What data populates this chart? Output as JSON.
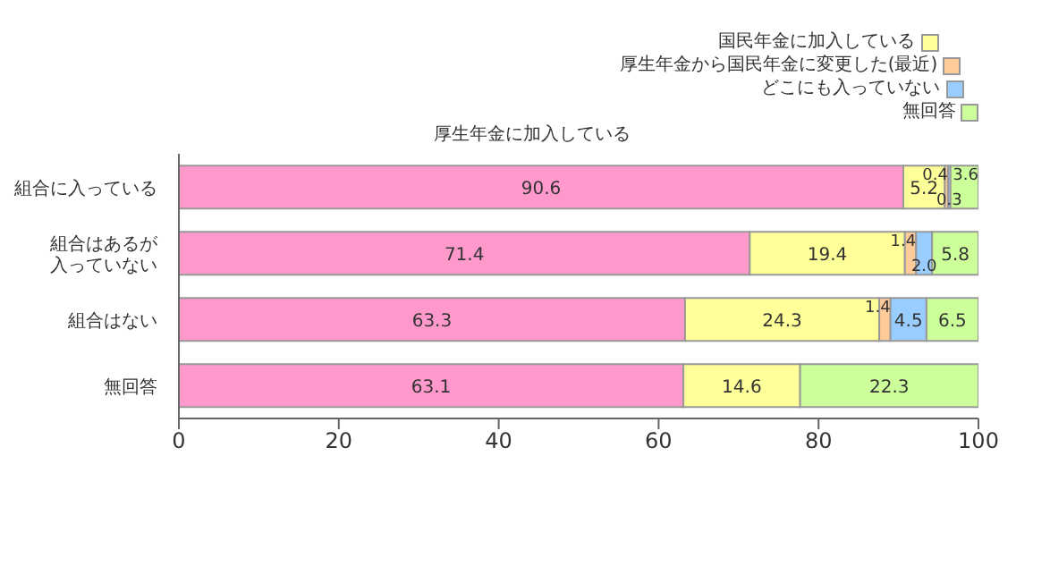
{
  "chart_data": {
    "type": "bar",
    "orientation": "horizontal",
    "stacked": true,
    "legend": "top right",
    "categories": [
      "組合に入っている",
      "組合はあるが入っていない",
      "組合はない",
      "無回答"
    ],
    "series": [
      {
        "name": "厚生年金に加入している",
        "color": "#ff99cc",
        "values": [
          90.6,
          71.4,
          63.3,
          63.1
        ],
        "value_labels": [
          "90.6",
          "71.4",
          "63.3",
          "63.1"
        ]
      },
      {
        "name": "国民年金に加入している",
        "color": "#ffff99",
        "values": [
          5.2,
          19.4,
          24.3,
          14.6
        ],
        "value_labels": [
          "5.2",
          "19.4",
          "24.3",
          "14.6"
        ]
      },
      {
        "name": "厚生年金から国民年金に変更した(最近)",
        "color": "#ffcc99",
        "values": [
          0.4,
          1.4,
          1.4,
          null
        ],
        "value_labels": [
          "0.4",
          "1.4",
          "1.4",
          null
        ]
      },
      {
        "name": "どこにも入っていない",
        "color": "#99ccff",
        "values": [
          0.3,
          2.0,
          4.5,
          null
        ],
        "value_labels": [
          "0.3",
          "2.0",
          "4.5",
          null
        ]
      },
      {
        "name": "無回答",
        "color": "#ccff99",
        "values": [
          3.6,
          5.8,
          6.5,
          22.3
        ],
        "value_labels": [
          "3.6",
          "5.8",
          "6.5",
          "22.3"
        ]
      }
    ],
    "xlim": [
      0,
      100
    ],
    "xticks": [
      0,
      20,
      40,
      60,
      80,
      100
    ]
  }
}
